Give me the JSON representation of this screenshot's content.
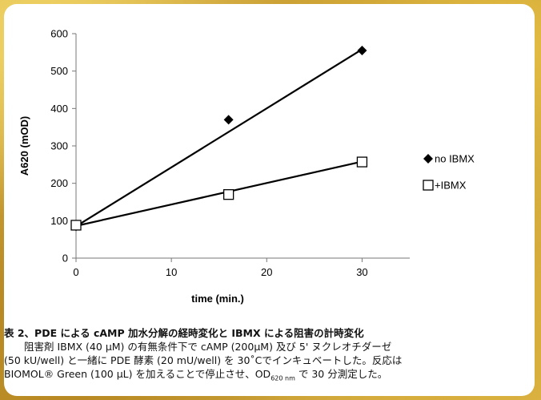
{
  "chart_data": {
    "type": "scatter",
    "xlabel": "time (min.)",
    "ylabel": "A620 (mOD)",
    "xlim": [
      0,
      35
    ],
    "ylim": [
      0,
      600
    ],
    "x_ticks": [
      0,
      10,
      20,
      30
    ],
    "y_ticks": [
      0,
      100,
      200,
      300,
      400,
      500,
      600
    ],
    "grid": false,
    "legend_position": "right",
    "series": [
      {
        "name": "no IBMX",
        "marker": "filled-diamond",
        "color": "#000000",
        "points": [
          {
            "x": 0,
            "y": 85
          },
          {
            "x": 16,
            "y": 370
          },
          {
            "x": 30,
            "y": 555
          }
        ],
        "trendline": [
          {
            "x": 0,
            "y": 85
          },
          {
            "x": 30,
            "y": 558
          }
        ]
      },
      {
        "name": "+IBMX",
        "marker": "open-square",
        "color": "#000000",
        "points": [
          {
            "x": 0,
            "y": 88
          },
          {
            "x": 16,
            "y": 170
          },
          {
            "x": 30,
            "y": 257
          }
        ],
        "trendline": [
          {
            "x": 0,
            "y": 86
          },
          {
            "x": 30,
            "y": 258
          }
        ]
      }
    ]
  },
  "caption": {
    "title": "表 2、PDE による cAMP 加水分解の経時変化と IBMX による阻害の計時変化",
    "lines": [
      "阻害剤 IBMX (40 µM) の有無条件下で cAMP (200µM) 及び 5' ヌクレオチダーゼ",
      "(50 kU/well) と一緒に PDE 酵素 (20 mU/well) を 30˚Cでインキュベートした。反応は",
      "BIOMOL® Green (100 µL) を加えることで停止させ、OD"
    ],
    "od_subscript": "620 nm",
    "line_end": " で 30 分測定した。"
  }
}
